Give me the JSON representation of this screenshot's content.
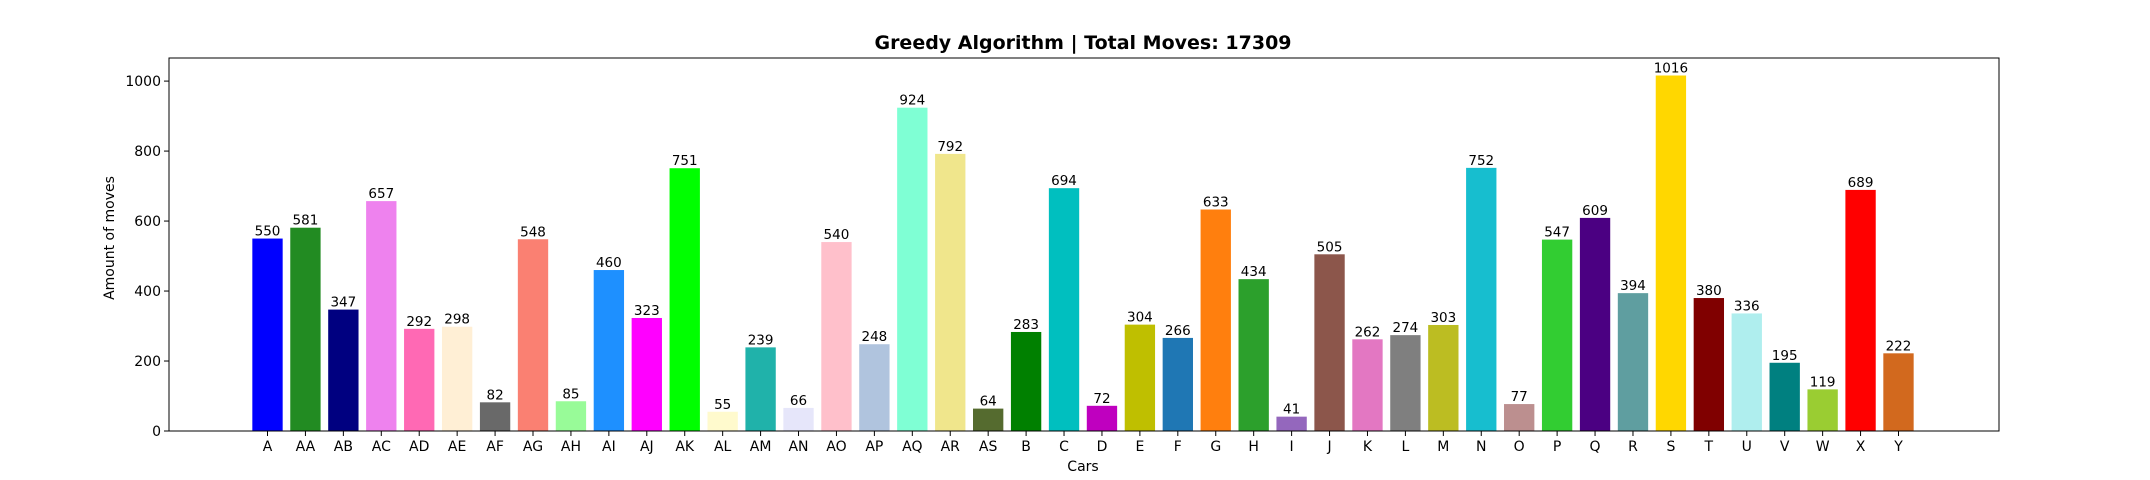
{
  "chart_data": {
    "type": "bar",
    "title": "Greedy Algorithm | Total Moves: 17309",
    "xlabel": "Cars",
    "ylabel": "Amount of moves",
    "ylim": [
      0,
      1066
    ],
    "yticks": [
      0,
      200,
      400,
      600,
      800,
      1000
    ],
    "grid": false,
    "categories": [
      "A",
      "AA",
      "AB",
      "AC",
      "AD",
      "AE",
      "AF",
      "AG",
      "AH",
      "AI",
      "AJ",
      "AK",
      "AL",
      "AM",
      "AN",
      "AO",
      "AP",
      "AQ",
      "AR",
      "AS",
      "B",
      "C",
      "D",
      "E",
      "F",
      "G",
      "H",
      "I",
      "J",
      "K",
      "L",
      "M",
      "N",
      "O",
      "P",
      "Q",
      "R",
      "S",
      "T",
      "U",
      "V",
      "W",
      "X",
      "Y"
    ],
    "values": [
      550,
      581,
      347,
      657,
      292,
      298,
      82,
      548,
      85,
      460,
      323,
      751,
      55,
      239,
      66,
      540,
      248,
      924,
      792,
      64,
      283,
      694,
      72,
      304,
      266,
      633,
      434,
      41,
      505,
      262,
      274,
      303,
      752,
      77,
      547,
      609,
      394,
      1016,
      380,
      336,
      195,
      119,
      689,
      222
    ],
    "colors": [
      "#0000ff",
      "#228b22",
      "#000080",
      "#ee82ee",
      "#ff69b4",
      "#ffefd5",
      "#696969",
      "#fa8072",
      "#98fb98",
      "#1e90ff",
      "#ff00ff",
      "#00ff00",
      "#fffacd",
      "#20b2aa",
      "#e6e6fa",
      "#ffc0cb",
      "#b0c4de",
      "#7fffd4",
      "#f0e68c",
      "#556b2f",
      "#008000",
      "#00bfbf",
      "#bf00bf",
      "#bfbf00",
      "#1f77b4",
      "#ff7f0e",
      "#2ca02c",
      "#9467bd",
      "#8c564b",
      "#e377c2",
      "#7f7f7f",
      "#bcbd22",
      "#17becf",
      "#bc8f8f",
      "#32cd32",
      "#4b0082",
      "#5f9ea0",
      "#ffd700",
      "#800000",
      "#afeeee",
      "#008080",
      "#9acd32",
      "#ff0000",
      "#d2691e"
    ]
  }
}
